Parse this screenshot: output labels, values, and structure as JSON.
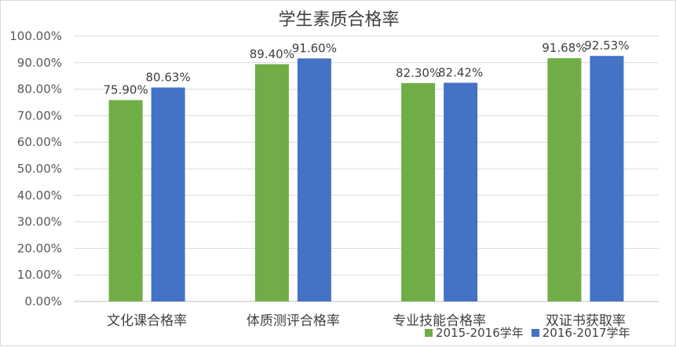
{
  "chart_data": {
    "type": "bar",
    "title": "学生素质合格率",
    "categories": [
      "文化课合格率",
      "体质测评合格率",
      "专业技能合格率",
      "双证书获取率"
    ],
    "series": [
      {
        "name": "2015-2016学年",
        "color": "#70ad47",
        "values": [
          75.9,
          89.4,
          82.3,
          91.68
        ],
        "labels": [
          "75.90%",
          "89.40%",
          "82.30%",
          "91.68%"
        ]
      },
      {
        "name": "2016-2017学年",
        "color": "#4472c4",
        "values": [
          80.63,
          91.6,
          82.42,
          92.53
        ],
        "labels": [
          "80.63%",
          "91.60%",
          "82.42%",
          "92.53%"
        ]
      }
    ],
    "ylim": [
      0,
      100
    ],
    "yticks": [
      0,
      10,
      20,
      30,
      40,
      50,
      60,
      70,
      80,
      90,
      100
    ],
    "ytick_labels": [
      "0.00%",
      "10.00%",
      "20.00%",
      "30.00%",
      "40.00%",
      "50.00%",
      "60.00%",
      "70.00%",
      "80.00%",
      "90.00%",
      "100.00%"
    ],
    "grid": true,
    "legend_position": "bottom-right",
    "xlabel": "",
    "ylabel": ""
  }
}
